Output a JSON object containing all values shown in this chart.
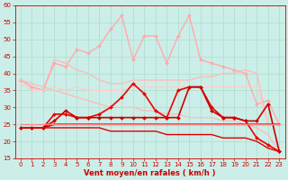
{
  "xlabel": "Vent moyen/en rafales ( km/h )",
  "xlim": [
    -0.5,
    23.5
  ],
  "ylim": [
    15,
    60
  ],
  "yticks": [
    15,
    20,
    25,
    30,
    35,
    40,
    45,
    50,
    55,
    60
  ],
  "xticks": [
    0,
    1,
    2,
    3,
    4,
    5,
    6,
    7,
    8,
    9,
    10,
    11,
    12,
    13,
    14,
    15,
    16,
    17,
    18,
    19,
    20,
    21,
    22,
    23
  ],
  "bg_color": "#cceee8",
  "grid_color": "#aaddcc",
  "series": [
    {
      "y": [
        38,
        36,
        35,
        44,
        43,
        41,
        40,
        38,
        37,
        37,
        38,
        38,
        38,
        38,
        38,
        38,
        39,
        39,
        40,
        40,
        41,
        40,
        25,
        25
      ],
      "color": "#ffbbbb",
      "lw": 1.0,
      "marker": null
    },
    {
      "y": [
        38,
        36,
        35,
        43,
        42,
        47,
        46,
        48,
        53,
        57,
        44,
        51,
        51,
        43,
        51,
        57,
        44,
        43,
        42,
        41,
        40,
        31,
        32,
        25
      ],
      "color": "#ffaaaa",
      "lw": 1.0,
      "marker": "D",
      "ms": 2.0
    },
    {
      "y": [
        37,
        35,
        35,
        36,
        35,
        36,
        35,
        35,
        35,
        35,
        36,
        36,
        36,
        36,
        36,
        36,
        36,
        36,
        36,
        36,
        36,
        36,
        25,
        25
      ],
      "color": "#ffcccc",
      "lw": 1.0,
      "marker": null
    },
    {
      "y": [
        38,
        37,
        36,
        35,
        34,
        33,
        32,
        31,
        30,
        30,
        30,
        29,
        29,
        28,
        28,
        27,
        27,
        27,
        26,
        26,
        25,
        24,
        22,
        17
      ],
      "color": "#ffbbbb",
      "lw": 1.0,
      "marker": null
    },
    {
      "y": [
        24,
        24,
        24,
        28,
        28,
        27,
        27,
        28,
        30,
        33,
        37,
        34,
        29,
        27,
        35,
        36,
        36,
        30,
        27,
        27,
        26,
        21,
        19,
        17
      ],
      "color": "#ee0000",
      "lw": 1.2,
      "marker": "D",
      "ms": 2.0
    },
    {
      "y": [
        24,
        24,
        24,
        26,
        29,
        27,
        27,
        27,
        27,
        27,
        27,
        27,
        27,
        27,
        27,
        36,
        36,
        29,
        27,
        27,
        26,
        26,
        31,
        17
      ],
      "color": "#cc0000",
      "lw": 1.2,
      "marker": "D",
      "ms": 2.0
    },
    {
      "y": [
        24,
        24,
        24,
        25,
        25,
        25,
        25,
        25,
        25,
        25,
        25,
        25,
        25,
        25,
        25,
        25,
        25,
        25,
        25,
        25,
        25,
        25,
        25,
        25
      ],
      "color": "#cc0000",
      "lw": 1.3,
      "marker": null
    },
    {
      "y": [
        25,
        25,
        25,
        25,
        25,
        25,
        25,
        25,
        25,
        25,
        25,
        25,
        25,
        25,
        25,
        25,
        25,
        25,
        25,
        25,
        25,
        25,
        25,
        25
      ],
      "color": "#ff8888",
      "lw": 1.0,
      "marker": null
    },
    {
      "y": [
        24,
        24,
        24,
        24,
        24,
        24,
        24,
        24,
        23,
        23,
        23,
        23,
        23,
        22,
        22,
        22,
        22,
        22,
        21,
        21,
        21,
        20,
        18,
        17
      ],
      "color": "#dd0000",
      "lw": 1.0,
      "marker": null
    }
  ],
  "arrow_color": "#cc0000",
  "tick_color": "#cc0000",
  "xlabel_color": "#cc0000",
  "tick_fontsize": 5,
  "xlabel_fontsize": 6
}
